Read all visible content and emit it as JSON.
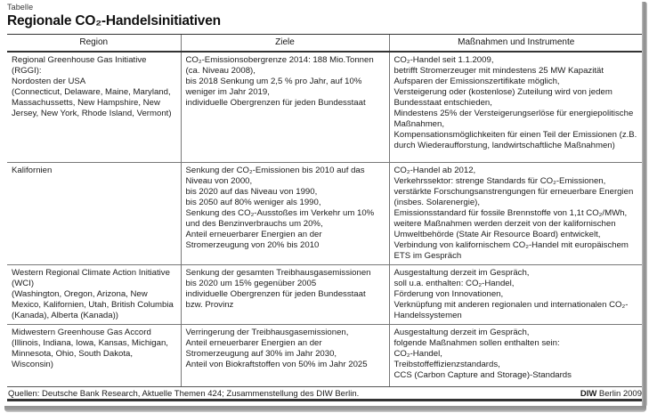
{
  "page": {
    "kicker": "Tabelle",
    "title": "Regionale CO₂-Handelsinitiativen"
  },
  "table": {
    "columns": [
      "Region",
      "Ziele",
      "Maßnahmen und Instrumente"
    ],
    "rows": [
      {
        "region": [
          "Regional Greenhouse Gas Initiative (RGGI):",
          "Nordosten der USA",
          "(Connecticut, Delaware, Maine, Maryland, Massachussetts, New Hampshire, New Jersey, New York, Rhode Island, Vermont)"
        ],
        "ziele": [
          "CO₂-Emissionsobergrenze 2014: 188 Mio.Tonnen (ca. Niveau 2008),",
          "bis 2018 Senkung um 2,5 % pro Jahr, auf 10% weniger im Jahr 2019,",
          "individuelle Obergrenzen für jeden Bundesstaat"
        ],
        "massnahmen": [
          "CO₂-Handel seit 1.1.2009,",
          "betrifft Stromerzeuger mit mindestens 25 MW Kapazität",
          "Aufsparen der Emissionszertifikate möglich,",
          "Versteigerung oder (kostenlose) Zuteilung wird von jedem Bundesstaat entschieden,",
          "Mindestens 25% der Versteigerungserlöse für energiepolitische Maßnahmen,",
          "Kompensationsmöglichkeiten für einen Teil der Emissionen (z.B. durch Wiederaufforstung, landwirtschaftliche Maßnahmen)"
        ]
      },
      {
        "region": [
          "Kalifornien"
        ],
        "ziele": [
          "Senkung der CO₂-Emissionen bis 2010 auf das Niveau von 2000,",
          "bis 2020 auf das Niveau von 1990,",
          "bis 2050 auf 80% weniger als 1990,",
          "Senkung des CO₂-Ausstoßes im Verkehr um 10% und des Benzinverbrauchs um 20%,",
          "Anteil erneuerbarer Energien an der Stromerzeugung von 20% bis 2010"
        ],
        "massnahmen": [
          "CO₂-Handel ab 2012,",
          "Verkehrssektor: strenge Standards für CO₂-Emissionen,",
          "verstärkte Forschungsanstrengungen für erneuerbare Energien (insbes. Solarenergie),",
          "Emissionsstandard für fossile Brennstoffe von 1,1t CO₂/MWh,",
          "weitere Maßnahmen werden derzeit von der kalifornischen Umweltbehörde (State Air Resource Board) entwickelt,",
          "Verbindung von kalifornischem CO₂-Handel mit europäischem ETS im Gespräch"
        ]
      },
      {
        "region": [
          "Western Regional Climate Action Initiative (WCI)",
          "(Washington, Oregon, Arizona, New Mexico, Kalifornien, Utah, British Columbia (Kanada), Alberta (Kanada))"
        ],
        "ziele": [
          "Senkung der gesamten Treibhausgasemissionen bis 2020 um 15% gegenüber 2005",
          "individuelle Obergrenzen für jeden Bundesstaat bzw. Provinz"
        ],
        "massnahmen": [
          "Ausgestaltung derzeit im Gespräch,",
          "soll u.a. enthalten: CO₂-Handel,",
          "Förderung von Innovationen,",
          "Verknüpfung mit anderen regionalen und internationalen CO₂-Handelssystemen"
        ]
      },
      {
        "region": [
          "Midwestern Greenhouse Gas Accord",
          "(Illinois, Indiana, Iowa, Kansas, Michigan, Minnesota, Ohio, South Dakota, Wisconsin)"
        ],
        "ziele": [
          "Verringerung der Treibhausgasemissionen,",
          "Anteil erneuerbarer Energien an der Stromerzeugung auf 30% im Jahr 2030,",
          "Anteil von Biokraftstoffen von 50% im Jahr 2025"
        ],
        "massnahmen": [
          "Ausgestaltung derzeit im Gespräch,",
          "folgende Maßnahmen sollen enthalten sein:",
          "CO₂-Handel,",
          "Treibstoffeffizienzstandards,",
          "CCS (Carbon Capture and Storage)-Standards"
        ]
      }
    ]
  },
  "footer": {
    "source": "Quellen: Deutsche Bank Research, Aktuelle Themen 424; Zusammenstellung des DIW Berlin.",
    "credit_bold": "DIW",
    "credit_rest": " Berlin 2009"
  },
  "colors": {
    "text": "#1c1c1c",
    "rule-dark": "#333333",
    "rule-light": "#787878",
    "shadow": "#8f8f8f"
  }
}
